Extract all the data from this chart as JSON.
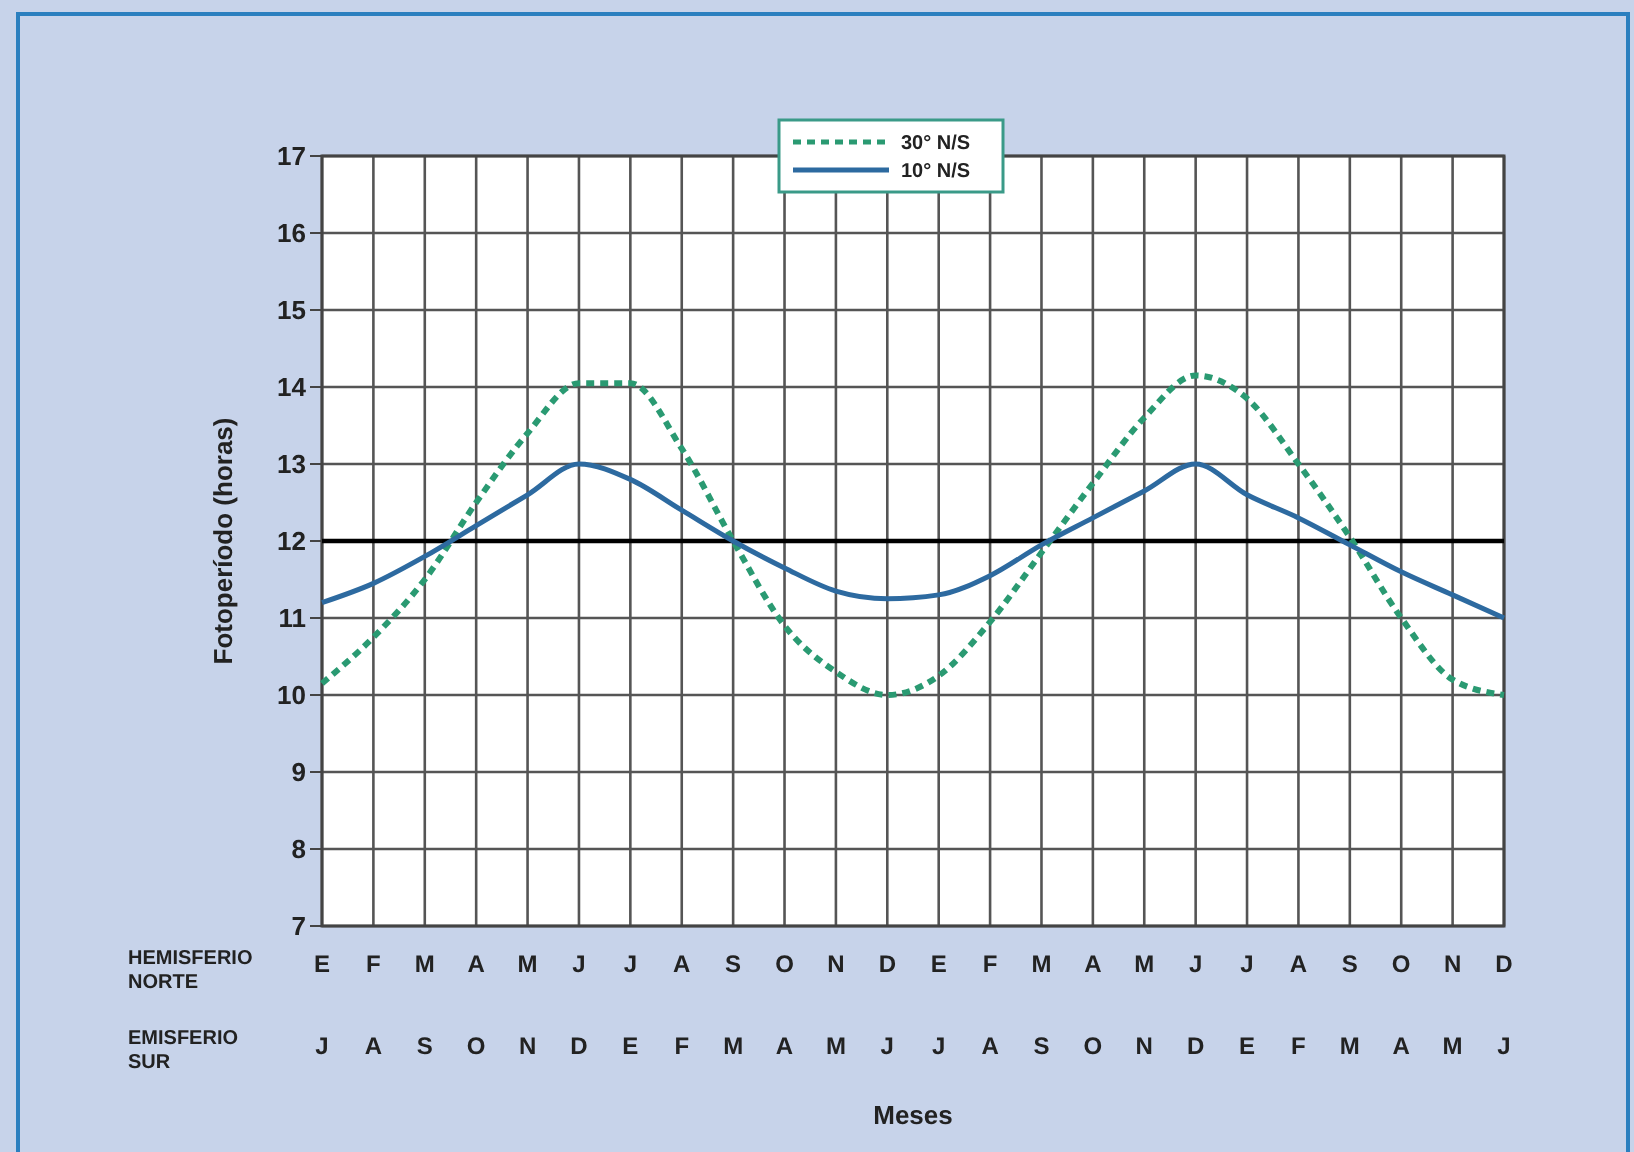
{
  "chart_data": {
    "type": "line",
    "ylabel": "Fotoperíodo (horas)",
    "xlabel": "Meses",
    "ylim": [
      7,
      17
    ],
    "yticks": [
      7,
      8,
      9,
      10,
      11,
      12,
      13,
      14,
      15,
      16,
      17
    ],
    "categories": [
      "E",
      "F",
      "M",
      "A",
      "M",
      "J",
      "J",
      "A",
      "S",
      "O",
      "N",
      "D",
      "E",
      "F",
      "M",
      "A",
      "M",
      "J",
      "J",
      "A",
      "S",
      "O",
      "N",
      "D"
    ],
    "annotations": [
      "HEMISFERIO NORTE",
      "EMISFERIO SUR",
      "J",
      "A",
      "S",
      "O",
      "N",
      "D",
      "E",
      "F",
      "M",
      "A",
      "M",
      "J",
      "J",
      "A",
      "S",
      "O",
      "N",
      "D",
      "E",
      "F",
      "M",
      "A",
      "M",
      "J"
    ],
    "grid": true,
    "legend": "top",
    "marker": "none",
    "ref_lines": [
      {
        "axis": "y",
        "value": 12,
        "color": "#000000"
      }
    ],
    "series": [
      {
        "name": "30° N/S",
        "color": "#2a9a72",
        "line_style": "dashed",
        "values": [
          10.15,
          10.75,
          11.5,
          12.5,
          13.4,
          14.05,
          14.05,
          13.2,
          12.0,
          10.9,
          10.3,
          10.0,
          10.25,
          10.95,
          11.85,
          12.75,
          13.6,
          14.15,
          13.85,
          13.0,
          12.05,
          11.0,
          10.2,
          10.0
        ]
      },
      {
        "name": "10° N/S",
        "color": "#2d6aa0",
        "line_style": "solid",
        "values": [
          11.2,
          11.45,
          11.8,
          12.2,
          12.6,
          13.0,
          12.8,
          12.4,
          12.0,
          11.65,
          11.35,
          11.25,
          11.3,
          11.55,
          11.95,
          12.3,
          12.65,
          13.0,
          12.6,
          12.3,
          11.95,
          11.6,
          11.3,
          11.0
        ]
      }
    ]
  }
}
